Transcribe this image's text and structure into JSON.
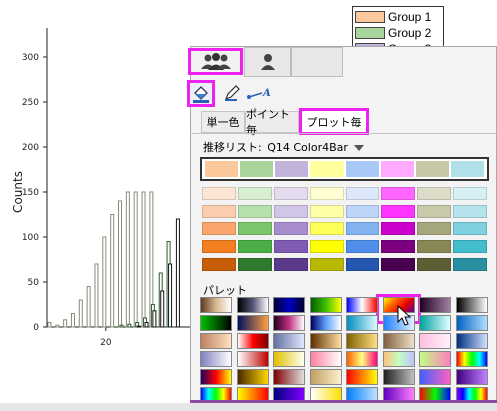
{
  "chart_data": {
    "type": "bar",
    "y_axis": {
      "label": "Counts",
      "ticks": [
        "0",
        "50",
        "100",
        "150",
        "200",
        "250",
        "300"
      ],
      "range": [
        0,
        330
      ]
    },
    "x_axis": {
      "ticks": [
        "20"
      ],
      "range": [
        12.5,
        38
      ]
    },
    "series": [
      {
        "name": "Group 1",
        "x": [
          13,
          14,
          15,
          16,
          17,
          18,
          19,
          20,
          21,
          22,
          23,
          24,
          25,
          26
        ],
        "values": [
          5,
          2,
          8,
          15,
          30,
          45,
          70,
          100,
          125,
          140,
          150,
          150,
          150,
          150
        ]
      },
      {
        "name": "Group 2",
        "x": [
          21,
          22,
          23,
          24,
          25,
          26,
          27,
          28
        ],
        "values": [
          0,
          2,
          3,
          5,
          10,
          25,
          60,
          95
        ]
      },
      {
        "name": "Group 3",
        "x": [
          24,
          25,
          26,
          27,
          28,
          29,
          30,
          31
        ],
        "values": [
          1,
          5,
          18,
          40,
          70,
          120,
          200,
          200
        ]
      }
    ],
    "legend": {
      "placement": "top-right"
    }
  },
  "legend": {
    "items": [
      {
        "label": "Group 1",
        "color": "#fac89a"
      },
      {
        "label": "Group 2",
        "color": "#a8d59b"
      },
      {
        "label": "Group 3",
        "color": "#c3b3da"
      }
    ]
  },
  "panel": {
    "top_tab_icons": [
      "group-people-icon",
      "single-person-icon"
    ],
    "toolbar_icons": [
      "fill-bucket-icon",
      "pencil-icon",
      "line-text-icon"
    ],
    "mode_tabs": {
      "single_color": "単一色",
      "per_point": "ポイント毎",
      "per_plot": "プロット毎"
    },
    "increment_list_label": "推移リスト:",
    "increment_list_value": "Q14 Color4Bar",
    "palette_label": "パレット",
    "selected_colors": [
      "#fac89a",
      "#a8d59b",
      "#c3b3da",
      "#ffff9e",
      "#a8c8f5",
      "#ffaaff",
      "#c8c8a5",
      "#b0e0e8"
    ],
    "color_rows": [
      [
        "#fde5d3",
        "#d8eed2",
        "#e4dcee",
        "#ffffd2",
        "#dde9fb",
        "#ff66ff",
        "#dcdcc8",
        "#d6f0f4"
      ],
      [
        "#fbcfae",
        "#b6e0ab",
        "#d2c6e6",
        "#ffffa8",
        "#bcd5f8",
        "#ff33ff",
        "#c8c8aa",
        "#b5e3ec"
      ],
      [
        "#f9a56b",
        "#7cc56c",
        "#a78dcd",
        "#ffff5a",
        "#85b3f2",
        "#cc00cc",
        "#a6a67c",
        "#7fd0e0"
      ],
      [
        "#f47f20",
        "#4cae47",
        "#7f5bb3",
        "#ffff00",
        "#4f8ee9",
        "#7a0080",
        "#888855",
        "#43bccd"
      ],
      [
        "#c85d08",
        "#2f7a2c",
        "#5b3a8c",
        "#b8b800",
        "#2556b0",
        "#4a0050",
        "#5e5e35",
        "#2a8fa0"
      ]
    ],
    "palette_swatches": [
      [
        "wood-gradient",
        "fire-to-blue",
        "dark-blue",
        "green-yellow",
        "blue-white-red",
        "rainbow-fire",
        "dark-purple",
        "black-white"
      ],
      [
        "green-black",
        "navy-orange",
        "pink-purple",
        "blue-sky",
        "cyan-white",
        "light-blue",
        "aqua",
        "sky-blue"
      ],
      [
        "skin-tone",
        "white-red",
        "gray-blue",
        "brown-tan",
        "gold-bronze",
        "brown-light",
        "light-pink",
        "blue-fade"
      ],
      [
        "violet-white",
        "blue-red",
        "yellow-cream",
        "pink-white",
        "sunset",
        "rainbow-pastel",
        "lime-pink",
        "spectral"
      ],
      [
        "dark-rainbow",
        "brown-gold",
        "red-gray",
        "sand",
        "red-yellow",
        "gray-dark",
        "blue-pink",
        "purple"
      ],
      [
        "rainbow-full",
        "yellow-red",
        "blue-purple",
        "white-yellow",
        "blue-light",
        "violet-pink",
        "rainbow-vivid",
        "spectrum"
      ]
    ]
  }
}
